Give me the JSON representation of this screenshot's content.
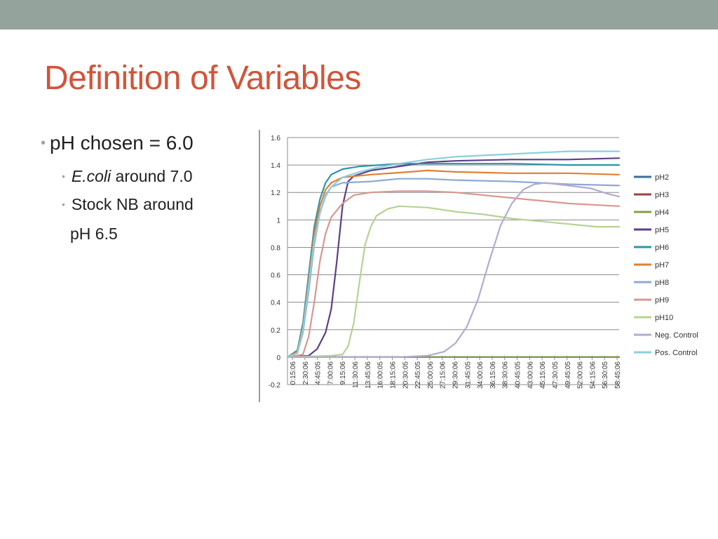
{
  "slide": {
    "title": "Definition of Variables",
    "bullet1": "pH chosen = 6.0",
    "bullet2_em": "E.coli",
    "bullet2_rest": " around 7.0",
    "bullet3": "Stock NB around",
    "bullet3_cont": "pH 6.5"
  },
  "chart_data": {
    "type": "line",
    "title": "",
    "xlabel": "",
    "ylabel": "",
    "ylim": [
      -0.2,
      1.6
    ],
    "yticks": [
      "1.6",
      "1.4",
      "1.2",
      "1",
      "0.8",
      "0.6",
      "0.4",
      "0.2",
      "0",
      "-0.2"
    ],
    "grid": true,
    "legend_position": "right",
    "xlim_hours": [
      0.25,
      59
    ],
    "x_tick_labels": [
      "0:15:06",
      "2:30:06",
      "4:45:05",
      "7:00:06",
      "9:15:06",
      "11:30:06",
      "13:45:06",
      "16:00:05",
      "18:15:06",
      "20:30:05",
      "22:45:05",
      "25:00:06",
      "27:15:06",
      "29:30:06",
      "31:45:05",
      "34:00:06",
      "36:15:06",
      "38:30:06",
      "40:45:05",
      "43:00:06",
      "45:15:06",
      "47:30:05",
      "49:45:05",
      "52:00:06",
      "54:15:06",
      "56:30:05",
      "58:45:06"
    ],
    "series": [
      {
        "name": "pH2",
        "color": "#3d6e9e",
        "points": [
          [
            0.25,
            0
          ],
          [
            59,
            0
          ]
        ]
      },
      {
        "name": "pH3",
        "color": "#a0403c",
        "points": [
          [
            0.25,
            0
          ],
          [
            59,
            0
          ]
        ]
      },
      {
        "name": "pH4",
        "color": "#7fa04a",
        "points": [
          [
            0.25,
            0
          ],
          [
            59,
            0
          ]
        ]
      },
      {
        "name": "pH5",
        "color": "#5b3f88",
        "points": [
          [
            0.25,
            0
          ],
          [
            4,
            0.01
          ],
          [
            5.5,
            0.06
          ],
          [
            7,
            0.18
          ],
          [
            8,
            0.35
          ],
          [
            9,
            0.7
          ],
          [
            10,
            1.1
          ],
          [
            11,
            1.28
          ],
          [
            12,
            1.32
          ],
          [
            15,
            1.36
          ],
          [
            20,
            1.39
          ],
          [
            25,
            1.42
          ],
          [
            30,
            1.43
          ],
          [
            40,
            1.44
          ],
          [
            50,
            1.44
          ],
          [
            59,
            1.45
          ]
        ]
      },
      {
        "name": "pH6",
        "color": "#2f94a8",
        "points": [
          [
            0.25,
            0
          ],
          [
            2,
            0.05
          ],
          [
            3,
            0.25
          ],
          [
            4,
            0.6
          ],
          [
            5,
            0.95
          ],
          [
            6,
            1.15
          ],
          [
            7,
            1.27
          ],
          [
            8,
            1.33
          ],
          [
            10,
            1.37
          ],
          [
            13,
            1.39
          ],
          [
            20,
            1.41
          ],
          [
            30,
            1.41
          ],
          [
            40,
            1.41
          ],
          [
            50,
            1.4
          ],
          [
            59,
            1.4
          ]
        ]
      },
      {
        "name": "pH7",
        "color": "#e07f35",
        "points": [
          [
            0.25,
            0
          ],
          [
            2,
            0.04
          ],
          [
            3,
            0.22
          ],
          [
            4,
            0.55
          ],
          [
            5,
            0.9
          ],
          [
            6,
            1.1
          ],
          [
            7,
            1.22
          ],
          [
            8,
            1.27
          ],
          [
            10,
            1.31
          ],
          [
            15,
            1.33
          ],
          [
            22,
            1.35
          ],
          [
            25,
            1.36
          ],
          [
            30,
            1.35
          ],
          [
            40,
            1.34
          ],
          [
            50,
            1.34
          ],
          [
            59,
            1.33
          ]
        ]
      },
      {
        "name": "pH8",
        "color": "#8da9d2",
        "points": [
          [
            0.25,
            0
          ],
          [
            2,
            0.03
          ],
          [
            3,
            0.18
          ],
          [
            4,
            0.48
          ],
          [
            5,
            0.82
          ],
          [
            6,
            1.05
          ],
          [
            7,
            1.18
          ],
          [
            8,
            1.24
          ],
          [
            10,
            1.27
          ],
          [
            15,
            1.28
          ],
          [
            20,
            1.3
          ],
          [
            25,
            1.3
          ],
          [
            30,
            1.29
          ],
          [
            40,
            1.28
          ],
          [
            50,
            1.26
          ],
          [
            59,
            1.25
          ]
        ]
      },
      {
        "name": "pH9",
        "color": "#d99790",
        "points": [
          [
            0.25,
            0
          ],
          [
            3,
            0.02
          ],
          [
            4,
            0.15
          ],
          [
            5,
            0.4
          ],
          [
            6,
            0.7
          ],
          [
            7,
            0.9
          ],
          [
            8,
            1.02
          ],
          [
            10,
            1.12
          ],
          [
            12,
            1.18
          ],
          [
            15,
            1.2
          ],
          [
            20,
            1.21
          ],
          [
            25,
            1.21
          ],
          [
            30,
            1.2
          ],
          [
            40,
            1.16
          ],
          [
            50,
            1.12
          ],
          [
            59,
            1.1
          ]
        ]
      },
      {
        "name": "pH10",
        "color": "#b4d491",
        "points": [
          [
            0.25,
            0
          ],
          [
            8,
            0.01
          ],
          [
            10,
            0.02
          ],
          [
            11,
            0.08
          ],
          [
            12,
            0.25
          ],
          [
            13,
            0.55
          ],
          [
            14,
            0.82
          ],
          [
            15,
            0.95
          ],
          [
            16,
            1.03
          ],
          [
            18,
            1.08
          ],
          [
            20,
            1.1
          ],
          [
            25,
            1.09
          ],
          [
            30,
            1.06
          ],
          [
            35,
            1.04
          ],
          [
            40,
            1.01
          ],
          [
            45,
            0.99
          ],
          [
            50,
            0.97
          ],
          [
            55,
            0.95
          ],
          [
            59,
            0.95
          ]
        ]
      },
      {
        "name": "Neg. Control",
        "color": "#b5a9d0",
        "points": [
          [
            0.25,
            0
          ],
          [
            20,
            0
          ],
          [
            25,
            0.01
          ],
          [
            28,
            0.04
          ],
          [
            30,
            0.1
          ],
          [
            32,
            0.22
          ],
          [
            34,
            0.42
          ],
          [
            36,
            0.7
          ],
          [
            38,
            0.96
          ],
          [
            40,
            1.12
          ],
          [
            42,
            1.22
          ],
          [
            44,
            1.26
          ],
          [
            46,
            1.27
          ],
          [
            50,
            1.25
          ],
          [
            54,
            1.23
          ],
          [
            57,
            1.19
          ],
          [
            59,
            1.17
          ]
        ]
      },
      {
        "name": "Pos. Control",
        "color": "#8bcfdc",
        "points": [
          [
            0.25,
            0
          ],
          [
            2,
            0.03
          ],
          [
            3,
            0.2
          ],
          [
            4,
            0.52
          ],
          [
            5,
            0.85
          ],
          [
            6,
            1.05
          ],
          [
            7,
            1.17
          ],
          [
            8,
            1.24
          ],
          [
            10,
            1.31
          ],
          [
            13,
            1.35
          ],
          [
            16,
            1.38
          ],
          [
            20,
            1.41
          ],
          [
            25,
            1.44
          ],
          [
            30,
            1.46
          ],
          [
            35,
            1.47
          ],
          [
            40,
            1.48
          ],
          [
            45,
            1.49
          ],
          [
            50,
            1.5
          ],
          [
            55,
            1.5
          ],
          [
            59,
            1.5
          ]
        ]
      }
    ]
  }
}
